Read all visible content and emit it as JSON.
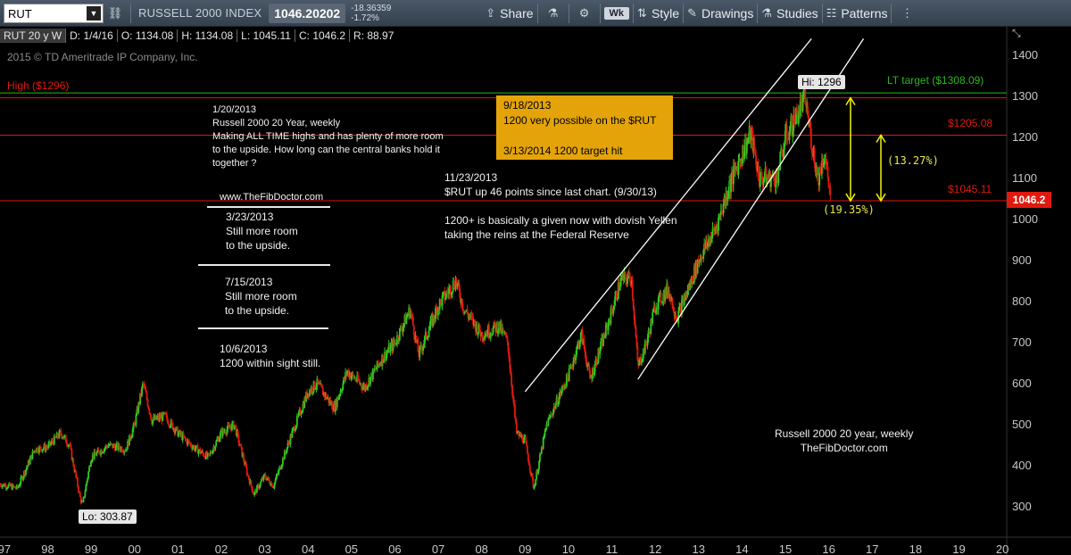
{
  "toolbar": {
    "symbol": "RUT",
    "index_name": "RUSSELL 2000 INDEX",
    "price": "1046.20202",
    "change": "-18.36359",
    "change_pct": "-1.72%",
    "share": "Share",
    "timeframe": "Wk",
    "style": "Style",
    "drawings": "Drawings",
    "studies": "Studies",
    "patterns": "Patterns"
  },
  "header": {
    "name": "RUT 20 y W",
    "date": "D: 1/4/16",
    "open": "O: 1134.08",
    "high": "H: 1134.08",
    "low": "L: 1045.11",
    "close": "C: 1046.2",
    "range": "R: 88.97"
  },
  "copyright": "2015 © TD Ameritrade IP Company, Inc.",
  "annotations": {
    "note1": [
      "1/20/2013",
      "Russell 2000 20 Year, weekly",
      "Making ALL TIME highs and has plenty of more room",
      "to the upside. How long can the central banks hold it",
      "together ?"
    ],
    "site": "www.TheFibDoctor.com",
    "note2": [
      "3/23/2013",
      "Still more room",
      "to the upside."
    ],
    "note3": [
      "7/15/2013",
      "Still more room",
      "to the upside."
    ],
    "note4": [
      "10/6/2013",
      "1200 within sight still."
    ],
    "orange": [
      "9/18/2013",
      "1200 very possible on the $RUT",
      "",
      "3/13/2014  1200 target hit"
    ],
    "note5": [
      "11/23/2013",
      "$RUT up 46 points since last chart. (9/30/13)",
      "",
      "1200+ is basically a given now with dovish Yellen",
      "taking the reins at the Federal Reserve"
    ],
    "footer": [
      "Russell 2000 20 year, weekly",
      "TheFibDoctor.com"
    ],
    "high_label": "High ($1296)",
    "lt_target": "LT target ($1308.09)",
    "level_1205": "$1205.08",
    "level_1045": "$1045.11",
    "pct_13": "(13.27%)",
    "pct_19": "(19.35%)",
    "hi_callout": "Hi: 1296",
    "lo_callout": "Lo: 303.87",
    "last_price": "1046.2"
  },
  "colors": {
    "background": "#000000",
    "bull": "#2ecc1f",
    "bear": "#e0190e",
    "channel": "#ffffff",
    "target_green": "#29b81f",
    "level_red": "#e0190e",
    "arrow_yellow": "#f2f20a",
    "highlight_box": "#e4a409"
  },
  "chart_data": {
    "type": "candlestick",
    "title": "RUSSELL 2000 INDEX",
    "x_ticks": [
      "97",
      "98",
      "99",
      "00",
      "01",
      "02",
      "03",
      "04",
      "05",
      "06",
      "07",
      "08",
      "09",
      "10",
      "11",
      "12",
      "13",
      "14",
      "15",
      "16",
      "17",
      "18",
      "19",
      "20"
    ],
    "y_ticks": [
      300,
      400,
      500,
      600,
      700,
      800,
      900,
      1000,
      1100,
      1200,
      1300,
      1400
    ],
    "ylim": [
      230,
      1430
    ],
    "xlim": [
      1996.9,
      2020.1
    ],
    "levels": [
      {
        "name": "High ($1296)",
        "value": 1296
      },
      {
        "name": "LT target ($1308.09)",
        "value": 1308.09
      },
      {
        "name": "$1205.08",
        "value": 1205.08
      },
      {
        "name": "$1045.11",
        "value": 1045.11
      }
    ],
    "channel_lines": [
      {
        "from": [
          2009.0,
          580
        ],
        "to": [
          2015.6,
          1440
        ]
      },
      {
        "from": [
          2011.6,
          610
        ],
        "to": [
          2016.8,
          1440
        ]
      }
    ],
    "arrows": [
      {
        "x": 2016.5,
        "from": 1296,
        "to": 1045.11,
        "label": "(19.35%)"
      },
      {
        "x": 2017.2,
        "from": 1205.08,
        "to": 1045.11,
        "label": "(13.27%)"
      }
    ],
    "series": [
      {
        "name": "",
        "points": [
          [
            1996.9,
            355
          ],
          [
            1997.3,
            345
          ],
          [
            1997.7,
            440
          ],
          [
            1998.0,
            445
          ],
          [
            1998.3,
            480
          ],
          [
            1998.5,
            450
          ],
          [
            1998.75,
            320
          ],
          [
            1998.8,
            304
          ],
          [
            1999.0,
            420
          ],
          [
            1999.4,
            450
          ],
          [
            1999.8,
            440
          ],
          [
            2000.0,
            500
          ],
          [
            2000.2,
            600
          ],
          [
            2000.4,
            510
          ],
          [
            2000.7,
            520
          ],
          [
            2001.0,
            480
          ],
          [
            2001.3,
            450
          ],
          [
            2001.7,
            420
          ],
          [
            2002.0,
            480
          ],
          [
            2002.3,
            500
          ],
          [
            2002.6,
            380
          ],
          [
            2002.75,
            330
          ],
          [
            2003.0,
            375
          ],
          [
            2003.2,
            350
          ],
          [
            2003.6,
            470
          ],
          [
            2004.0,
            580
          ],
          [
            2004.2,
            600
          ],
          [
            2004.6,
            540
          ],
          [
            2004.9,
            630
          ],
          [
            2005.3,
            590
          ],
          [
            2005.7,
            660
          ],
          [
            2006.0,
            700
          ],
          [
            2006.35,
            780
          ],
          [
            2006.55,
            670
          ],
          [
            2007.0,
            790
          ],
          [
            2007.4,
            850
          ],
          [
            2007.6,
            780
          ],
          [
            2008.0,
            720
          ],
          [
            2008.4,
            740
          ],
          [
            2008.6,
            700
          ],
          [
            2008.8,
            480
          ],
          [
            2009.0,
            460
          ],
          [
            2009.2,
            345
          ],
          [
            2009.5,
            500
          ],
          [
            2010.0,
            620
          ],
          [
            2010.3,
            720
          ],
          [
            2010.5,
            610
          ],
          [
            2010.9,
            740
          ],
          [
            2011.2,
            850
          ],
          [
            2011.45,
            860
          ],
          [
            2011.6,
            640
          ],
          [
            2011.8,
            700
          ],
          [
            2012.0,
            790
          ],
          [
            2012.3,
            830
          ],
          [
            2012.5,
            760
          ],
          [
            2012.8,
            840
          ],
          [
            2013.0,
            900
          ],
          [
            2013.4,
            980
          ],
          [
            2013.7,
            1080
          ],
          [
            2014.0,
            1160
          ],
          [
            2014.2,
            1210
          ],
          [
            2014.4,
            1100
          ],
          [
            2014.8,
            1100
          ],
          [
            2015.0,
            1200
          ],
          [
            2015.2,
            1240
          ],
          [
            2015.45,
            1296
          ],
          [
            2015.6,
            1190
          ],
          [
            2015.75,
            1100
          ],
          [
            2015.9,
            1160
          ],
          [
            2016.05,
            1046
          ]
        ]
      }
    ]
  }
}
